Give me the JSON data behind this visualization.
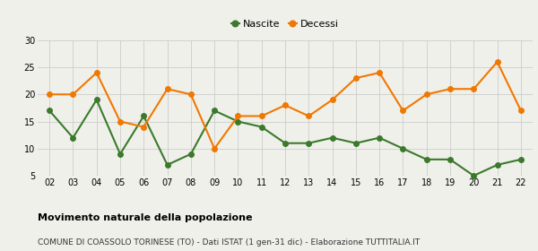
{
  "years": [
    2,
    3,
    4,
    5,
    6,
    7,
    8,
    9,
    10,
    11,
    12,
    13,
    14,
    15,
    16,
    17,
    18,
    19,
    20,
    21,
    22
  ],
  "nascite": [
    17,
    12,
    19,
    9,
    16,
    7,
    9,
    17,
    15,
    14,
    11,
    11,
    12,
    11,
    12,
    10,
    8,
    8,
    5,
    7,
    8
  ],
  "decessi": [
    20,
    20,
    24,
    15,
    14,
    21,
    20,
    10,
    16,
    16,
    18,
    16,
    19,
    23,
    24,
    17,
    20,
    21,
    21,
    26,
    17
  ],
  "nascite_color": "#3a7a2a",
  "decessi_color": "#f07800",
  "background_color": "#f0f0eb",
  "grid_color": "#cccccc",
  "title": "Movimento naturale della popolazione",
  "subtitle": "COMUNE DI COASSOLO TORINESE (TO) - Dati ISTAT (1 gen-31 dic) - Elaborazione TUTTITALIA.IT",
  "legend_labels": [
    "Nascite",
    "Decessi"
  ],
  "ylim": [
    5,
    30
  ],
  "yticks": [
    5,
    10,
    15,
    20,
    25,
    30
  ],
  "marker_size": 4,
  "line_width": 1.5,
  "tick_fontsize": 7,
  "title_fontsize": 8,
  "subtitle_fontsize": 6.5,
  "legend_fontsize": 8
}
